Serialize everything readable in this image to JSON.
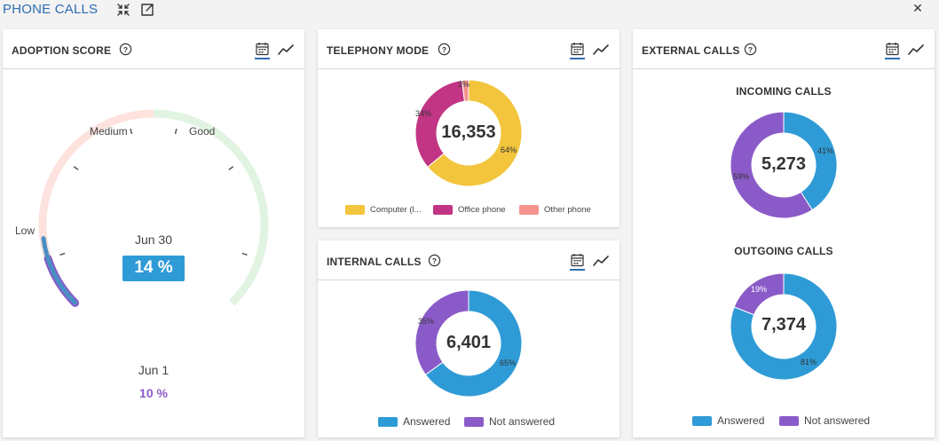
{
  "header": {
    "title": "PHONE CALLS"
  },
  "colors": {
    "blue": "#2f9bd6",
    "purple": "#8a5bc8",
    "yellow": "#f2c53d",
    "magenta": "#c13584",
    "salmon": "#f4938e",
    "good_zone": "#e1f3e1",
    "low_zone": "#fde2de",
    "accent": "#2e6db4"
  },
  "adoption": {
    "title": "ADOPTION SCORE",
    "labels": {
      "low": "Low",
      "medium": "Medium",
      "good": "Good"
    },
    "current_date": "Jun 30",
    "current_score": "14 %",
    "current_value": 14,
    "previous_date": "Jun 1",
    "previous_score": "10 %",
    "previous_value": 10
  },
  "telephony": {
    "title": "TELEPHONY MODE",
    "total": "16,353",
    "segments": [
      {
        "label": "Computer (l...",
        "pct_label": "64%",
        "value": 64,
        "color": "#f2c53d"
      },
      {
        "label": "Office phone",
        "pct_label": "34%",
        "value": 34,
        "color": "#c13584"
      },
      {
        "label": "Other phone",
        "pct_label": "2%",
        "value": 2,
        "color": "#f4938e"
      }
    ]
  },
  "internal": {
    "title": "INTERNAL CALLS",
    "total": "6,401",
    "segments": [
      {
        "label": "Answered",
        "pct_label": "65%",
        "value": 65,
        "color": "#2f9bd6"
      },
      {
        "label": "Not answered",
        "pct_label": "35%",
        "value": 35,
        "color": "#8a5bc8"
      }
    ]
  },
  "external": {
    "title": "EXTERNAL CALLS",
    "incoming": {
      "title": "INCOMING CALLS",
      "total": "5,273",
      "segments": [
        {
          "label": "Answered",
          "pct_label": "41%",
          "value": 41,
          "color": "#2f9bd6"
        },
        {
          "label": "Not answered",
          "pct_label": "59%",
          "value": 59,
          "color": "#8a5bc8"
        }
      ]
    },
    "outgoing": {
      "title": "OUTGOING CALLS",
      "total": "7,374",
      "segments": [
        {
          "label": "Answered",
          "pct_label": "81%",
          "value": 81,
          "color": "#2f9bd6"
        },
        {
          "label": "Not answered",
          "pct_label": "19%",
          "value": 19,
          "color": "#8a5bc8"
        }
      ]
    },
    "legend": [
      {
        "label": "Answered",
        "color": "#2f9bd6"
      },
      {
        "label": "Not answered",
        "color": "#8a5bc8"
      }
    ]
  },
  "icons": {
    "collapse": "collapse-icon",
    "open_external": "open-external-icon",
    "close": "close-icon",
    "help": "help-icon",
    "calendar": "calendar-icon",
    "trend": "trend-line-icon"
  }
}
